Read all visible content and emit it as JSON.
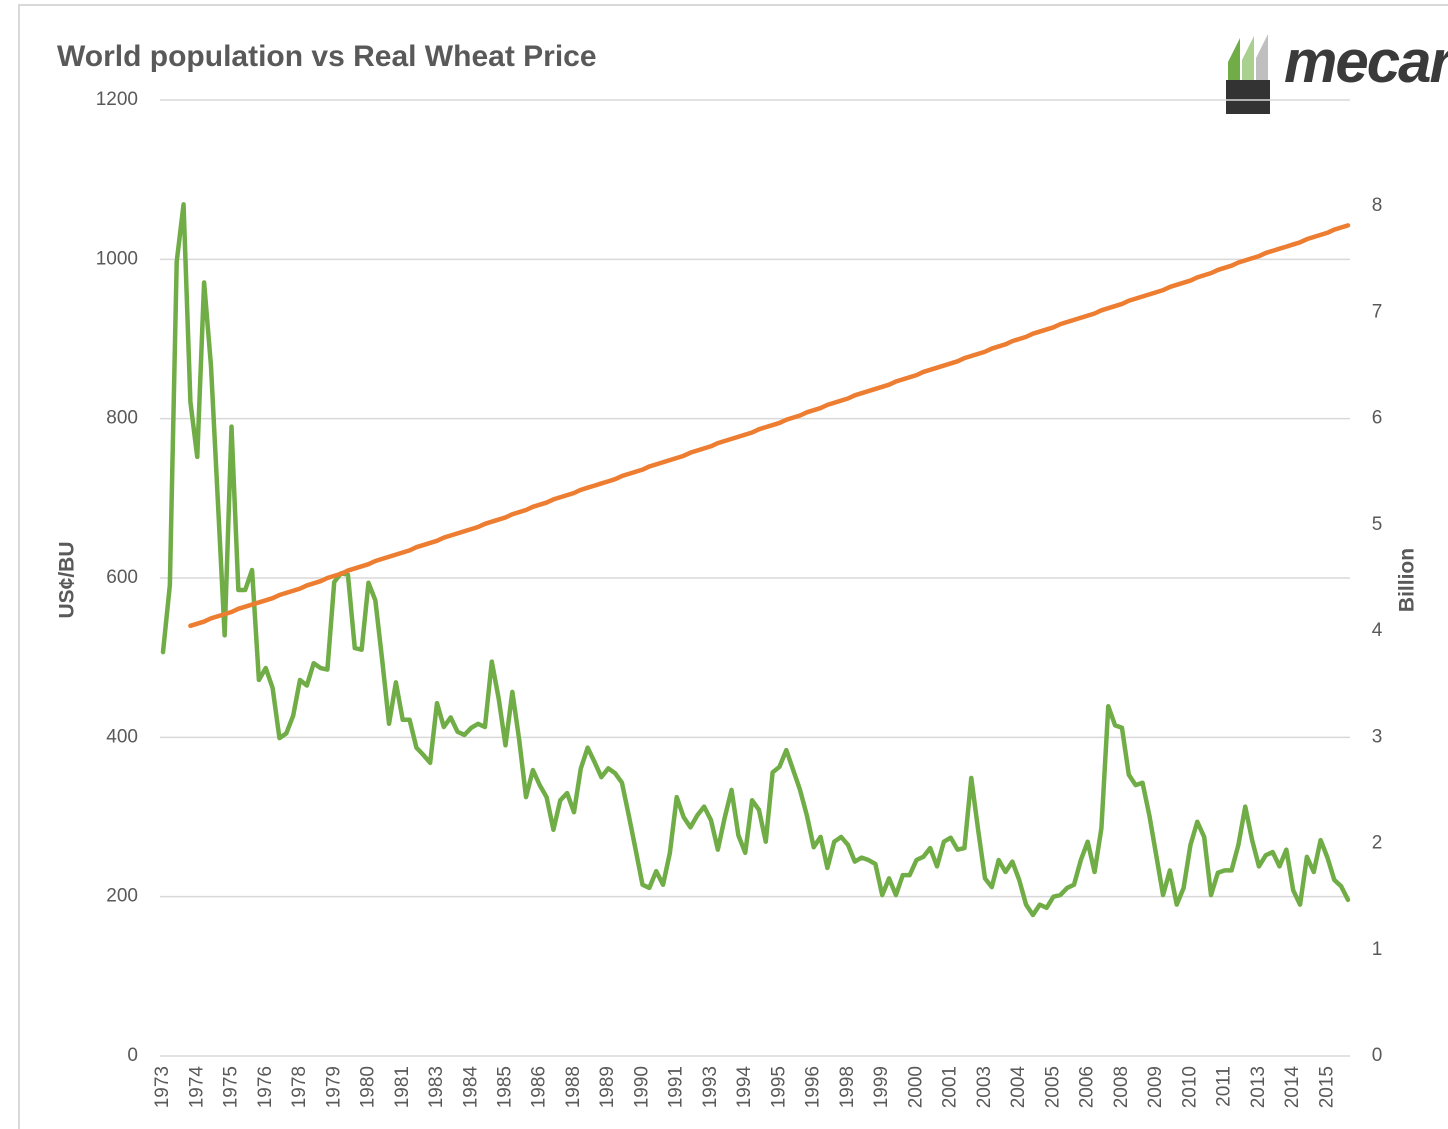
{
  "chart_data": {
    "type": "line",
    "title": "World population vs Real Wheat Price",
    "logo": "mecardo",
    "ylabel": "US¢/BU",
    "y2label": "Billion",
    "categories": [
      "1973",
      null,
      null,
      null,
      null,
      "1974",
      null,
      null,
      null,
      null,
      "1975",
      null,
      null,
      null,
      null,
      "1976",
      null,
      null,
      null,
      null,
      "1978",
      null,
      null,
      null,
      null,
      "1979",
      null,
      null,
      null,
      null,
      "1980",
      null,
      null,
      null,
      null,
      "1981",
      null,
      null,
      null,
      null,
      "1983",
      null,
      null,
      null,
      null,
      "1984",
      null,
      null,
      null,
      null,
      "1985",
      null,
      null,
      null,
      null,
      "1986",
      null,
      null,
      null,
      null,
      "1988",
      null,
      null,
      null,
      null,
      "1989",
      null,
      null,
      null,
      null,
      "1990",
      null,
      null,
      null,
      null,
      "1991",
      null,
      null,
      null,
      null,
      "1993",
      null,
      null,
      null,
      null,
      "1994",
      null,
      null,
      null,
      null,
      "1995",
      null,
      null,
      null,
      null,
      "1996",
      null,
      null,
      null,
      null,
      "1998",
      null,
      null,
      null,
      null,
      "1999",
      null,
      null,
      null,
      null,
      "2000",
      null,
      null,
      null,
      null,
      "2001",
      null,
      null,
      null,
      null,
      "2003",
      null,
      null,
      null,
      null,
      "2004",
      null,
      null,
      null,
      null,
      "2005",
      null,
      null,
      null,
      null,
      "2006",
      null,
      null,
      null,
      null,
      "2008",
      null,
      null,
      null,
      null,
      "2009",
      null,
      null,
      null,
      null,
      "2010",
      null,
      null,
      null,
      null,
      "2011",
      null,
      null,
      null,
      null,
      "2013",
      null,
      null,
      null,
      null,
      "2014",
      null,
      null,
      null,
      null,
      "2015",
      null,
      null,
      null
    ],
    "series": [
      {
        "color": "#70ad47",
        "axis": "y",
        "values": [
          507,
          591,
          997,
          1069,
          821,
          752,
          971,
          867,
          698,
          528,
          790,
          585,
          585,
          610,
          472,
          487,
          462,
          399,
          405,
          427,
          472,
          465,
          493,
          487,
          485,
          595,
          606,
          604,
          512,
          510,
          594,
          572,
          497,
          417,
          469,
          422,
          422,
          387,
          378,
          368,
          443,
          413,
          425,
          407,
          403,
          412,
          417,
          413,
          495,
          449,
          390,
          457,
          397,
          325,
          359,
          340,
          325,
          284,
          321,
          330,
          306,
          361,
          387,
          369,
          350,
          361,
          355,
          343,
          302,
          259,
          215,
          211,
          232,
          215,
          255,
          325,
          300,
          287,
          302,
          313,
          296,
          259,
          299,
          334,
          277,
          255,
          321,
          309,
          269,
          356,
          363,
          384,
          359,
          334,
          302,
          262,
          275,
          236,
          269,
          275,
          265,
          244,
          249,
          246,
          241,
          202,
          223,
          202,
          227,
          227,
          246,
          250,
          261,
          238,
          269,
          274,
          259,
          261,
          349,
          284,
          223,
          212,
          246,
          231,
          244,
          221,
          190,
          177,
          190,
          186,
          200,
          202,
          211,
          215,
          246,
          269,
          231,
          286,
          439,
          415,
          412,
          353,
          340,
          343,
          302,
          252,
          202,
          233,
          190,
          211,
          265,
          294,
          275,
          202,
          230,
          233,
          233,
          265,
          313,
          271,
          238,
          252,
          256,
          238,
          259,
          208,
          190,
          250,
          231,
          271,
          249,
          221,
          213,
          196
        ]
      },
      {
        "color": "#ed7d31",
        "axis": "y2",
        "values": [
          null,
          null,
          null,
          null,
          4.05,
          4.07,
          4.09,
          4.12,
          4.14,
          4.16,
          4.18,
          4.21,
          4.23,
          4.25,
          4.27,
          4.29,
          4.31,
          4.34,
          4.36,
          4.38,
          4.4,
          4.43,
          4.45,
          4.47,
          4.5,
          4.52,
          4.54,
          4.57,
          4.59,
          4.61,
          4.63,
          4.66,
          4.68,
          4.7,
          4.72,
          4.74,
          4.76,
          4.79,
          4.81,
          4.83,
          4.85,
          4.88,
          4.9,
          4.92,
          4.94,
          4.96,
          4.98,
          5.01,
          5.03,
          5.05,
          5.07,
          5.1,
          5.12,
          5.14,
          5.17,
          5.19,
          5.21,
          5.24,
          5.26,
          5.28,
          5.3,
          5.33,
          5.35,
          5.37,
          5.39,
          5.41,
          5.43,
          5.46,
          5.48,
          5.5,
          5.52,
          5.55,
          5.57,
          5.59,
          5.61,
          5.63,
          5.65,
          5.68,
          5.7,
          5.72,
          5.74,
          5.77,
          5.79,
          5.81,
          5.83,
          5.85,
          5.87,
          5.9,
          5.92,
          5.94,
          5.96,
          5.99,
          6.01,
          6.03,
          6.06,
          6.08,
          6.1,
          6.13,
          6.15,
          6.17,
          6.19,
          6.22,
          6.24,
          6.26,
          6.28,
          6.3,
          6.32,
          6.35,
          6.37,
          6.39,
          6.41,
          6.44,
          6.46,
          6.48,
          6.5,
          6.52,
          6.54,
          6.57,
          6.59,
          6.61,
          6.63,
          6.66,
          6.68,
          6.7,
          6.73,
          6.75,
          6.77,
          6.8,
          6.82,
          6.84,
          6.86,
          6.89,
          6.91,
          6.93,
          6.95,
          6.97,
          6.99,
          7.02,
          7.04,
          7.06,
          7.08,
          7.11,
          7.13,
          7.15,
          7.17,
          7.19,
          7.21,
          7.24,
          7.26,
          7.28,
          7.3,
          7.33,
          7.35,
          7.37,
          7.4,
          7.42,
          7.44,
          7.47,
          7.49,
          7.51,
          7.53,
          7.56,
          7.58,
          7.6,
          7.62,
          7.64,
          7.66,
          7.69,
          7.71,
          7.73,
          7.75,
          7.78,
          7.8,
          7.82
        ]
      }
    ],
    "ylim": [
      0,
      1200
    ],
    "yticks": [
      0,
      200,
      400,
      600,
      800,
      1000,
      1200
    ],
    "y2lim": [
      0,
      9
    ],
    "y2ticks": [
      0,
      1,
      2,
      3,
      4,
      5,
      6,
      7,
      8
    ],
    "grid": true
  }
}
